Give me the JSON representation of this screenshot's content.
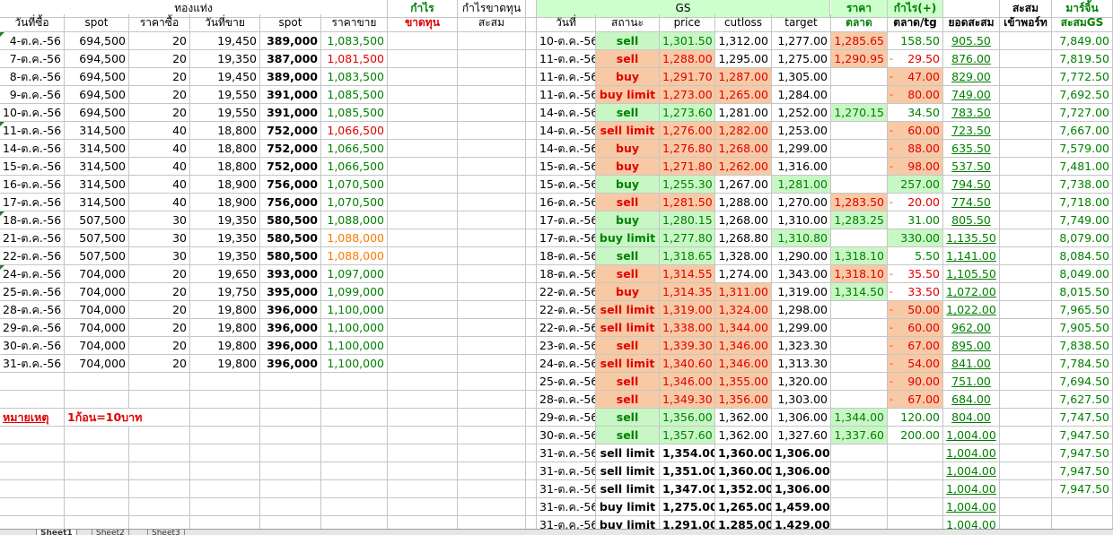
{
  "left": {
    "title": "ทองแท่ง",
    "profit_label": "กำไร",
    "loss_label": "ขาดทุน",
    "cum_title": "กำไรขาดทุน",
    "cum_label": "สะสม",
    "headers": [
      "วันที่ซื้อ",
      "spot",
      "ราคาซื้อ",
      "วันที่ขาย",
      "spot",
      "ราคาขาย"
    ],
    "rows": [
      [
        "4-ต.ค.-56",
        "694,500",
        "20",
        "19,450",
        "389,000",
        "1,083,500"
      ],
      [
        "7-ต.ค.-56",
        "694,500",
        "20",
        "19,350",
        "387,000",
        "1,081,500"
      ],
      [
        "8-ต.ค.-56",
        "694,500",
        "20",
        "19,450",
        "389,000",
        "1,083,500"
      ],
      [
        "9-ต.ค.-56",
        "694,500",
        "20",
        "19,550",
        "391,000",
        "1,085,500"
      ],
      [
        "10-ต.ค.-56",
        "694,500",
        "20",
        "19,550",
        "391,000",
        "1,085,500"
      ],
      [
        "11-ต.ค.-56",
        "314,500",
        "40",
        "18,800",
        "752,000",
        "1,066,500"
      ],
      [
        "14-ต.ค.-56",
        "314,500",
        "40",
        "18,800",
        "752,000",
        "1,066,500"
      ],
      [
        "15-ต.ค.-56",
        "314,500",
        "40",
        "18,800",
        "752,000",
        "1,066,500"
      ],
      [
        "16-ต.ค.-56",
        "314,500",
        "40",
        "18,900",
        "756,000",
        "1,070,500"
      ],
      [
        "17-ต.ค.-56",
        "314,500",
        "40",
        "18,900",
        "756,000",
        "1,070,500"
      ],
      [
        "18-ต.ค.-56",
        "507,500",
        "30",
        "19,350",
        "580,500",
        "1,088,000"
      ],
      [
        "21-ต.ค.-56",
        "507,500",
        "30",
        "19,350",
        "580,500",
        "1,088,000"
      ],
      [
        "22-ต.ค.-56",
        "507,500",
        "30",
        "19,350",
        "580,500",
        "1,088,000"
      ],
      [
        "24-ต.ค.-56",
        "704,000",
        "20",
        "19,650",
        "393,000",
        "1,097,000"
      ],
      [
        "25-ต.ค.-56",
        "704,000",
        "20",
        "19,750",
        "395,000",
        "1,099,000"
      ],
      [
        "28-ต.ค.-56",
        "704,000",
        "20",
        "19,800",
        "396,000",
        "1,100,000"
      ],
      [
        "29-ต.ค.-56",
        "704,000",
        "20",
        "19,800",
        "396,000",
        "1,100,000"
      ],
      [
        "30-ต.ค.-56",
        "704,000",
        "20",
        "19,800",
        "396,000",
        "1,100,000"
      ],
      [
        "31-ต.ค.-56",
        "704,000",
        "20",
        "19,800",
        "396,000",
        "1,100,000"
      ]
    ],
    "sale_colors": [
      "green",
      "red",
      "green",
      "green",
      "green",
      "red",
      "green",
      "green",
      "green",
      "green",
      "green",
      "orange",
      "orange",
      "green",
      "green",
      "green",
      "green",
      "green",
      "green"
    ],
    "date_marked_rows": [
      0,
      5,
      10,
      13
    ],
    "note_label": "หมายเหตุ",
    "note_text": "1ก้อน=10บาท"
  },
  "gs": {
    "title": "GS",
    "price_label": "ราคา",
    "profit_label": "กำไร(+)",
    "cum_label": "สะสม",
    "margin_label": "มาร์จิ้น",
    "headers": [
      "วันที่",
      "สถานะ",
      "price",
      "cutloss",
      "target",
      "ตลาด",
      "ตลาด/tg",
      "ยอดสะสม",
      "เข้าพอร์ท",
      "สะสมGS"
    ],
    "rows": [
      {
        "date": "10-ต.ค.-56",
        "status": "sell",
        "price": "1,301.50",
        "cutloss": "1,312.00",
        "target": "1,277.00",
        "market": "1,285.65",
        "pl": "158.50",
        "acc": "905.50",
        "margin": "7,849.00"
      },
      {
        "date": "11-ต.ค.-56",
        "status": "sell",
        "price": "1,288.00",
        "cutloss": "1,295.00",
        "target": "1,275.00",
        "market": "1,290.95",
        "pl": "29.50",
        "acc": "876.00",
        "margin": "7,819.50"
      },
      {
        "date": "11-ต.ค.-56",
        "status": "buy",
        "price": "1,291.70",
        "cutloss": "1,287.00",
        "target": "1,305.00",
        "market": "",
        "pl": "47.00",
        "acc": "829.00",
        "margin": "7,772.50"
      },
      {
        "date": "11-ต.ค.-56",
        "status": "buy limit",
        "price": "1,273.00",
        "cutloss": "1,265.00",
        "target": "1,284.00",
        "market": "",
        "pl": "80.00",
        "acc": "749.00",
        "margin": "7,692.50"
      },
      {
        "date": "14-ต.ค.-56",
        "status": "sell",
        "price": "1,273.60",
        "cutloss": "1,281.00",
        "target": "1,252.00",
        "market": "1,270.15",
        "pl": "34.50",
        "acc": "783.50",
        "margin": "7,727.00"
      },
      {
        "date": "14-ต.ค.-56",
        "status": "sell limit",
        "price": "1,276.00",
        "cutloss": "1,282.00",
        "target": "1,253.00",
        "market": "",
        "pl": "60.00",
        "acc": "723.50",
        "margin": "7,667.00"
      },
      {
        "date": "14-ต.ค.-56",
        "status": "buy",
        "price": "1,276.80",
        "cutloss": "1,268.00",
        "target": "1,299.00",
        "market": "",
        "pl": "88.00",
        "acc": "635.50",
        "margin": "7,579.00"
      },
      {
        "date": "15-ต.ค.-56",
        "status": "buy",
        "price": "1,271.80",
        "cutloss": "1,262.00",
        "target": "1,316.00",
        "market": "",
        "pl": "98.00",
        "acc": "537.50",
        "margin": "7,481.00"
      },
      {
        "date": "15-ต.ค.-56",
        "status": "buy",
        "price": "1,255.30",
        "cutloss": "1,267.00",
        "target": "1,281.00",
        "market": "",
        "pl": "257.00",
        "acc": "794.50",
        "margin": "7,738.00"
      },
      {
        "date": "16-ต.ค.-56",
        "status": "sell",
        "price": "1,281.50",
        "cutloss": "1,288.00",
        "target": "1,270.00",
        "market": "1,283.50",
        "pl": "20.00",
        "acc": "774.50",
        "margin": "7,718.00"
      },
      {
        "date": "17-ต.ค.-56",
        "status": "buy",
        "price": "1,280.15",
        "cutloss": "1,268.00",
        "target": "1,310.00",
        "market": "1,283.25",
        "pl": "31.00",
        "acc": "805.50",
        "margin": "7,749.00"
      },
      {
        "date": "17-ต.ค.-56",
        "status": "buy limit",
        "price": "1,277.80",
        "cutloss": "1,268.80",
        "target": "1,310.80",
        "market": "",
        "pl": "330.00",
        "acc": "1,135.50",
        "margin": "8,079.00"
      },
      {
        "date": "18-ต.ค.-56",
        "status": "sell",
        "price": "1,318.65",
        "cutloss": "1,328.00",
        "target": "1,290.00",
        "market": "1,318.10",
        "pl": "5.50",
        "acc": "1,141.00",
        "margin": "8,084.50"
      },
      {
        "date": "18-ต.ค.-56",
        "status": "sell",
        "price": "1,314.55",
        "cutloss": "1,274.00",
        "target": "1,343.00",
        "market": "1,318.10",
        "pl": "35.50",
        "acc": "1,105.50",
        "margin": "8,049.00"
      },
      {
        "date": "22-ต.ค.-56",
        "status": "buy",
        "price": "1,314.35",
        "cutloss": "1,311.00",
        "target": "1,319.00",
        "market": "1,314.50",
        "pl": "33.50",
        "acc": "1,072.00",
        "margin": "8,015.50"
      },
      {
        "date": "22-ต.ค.-56",
        "status": "sell limit",
        "price": "1,319.00",
        "cutloss": "1,324.00",
        "target": "1,298.00",
        "market": "",
        "pl": "50.00",
        "acc": "1,022.00",
        "margin": "7,965.50"
      },
      {
        "date": "22-ต.ค.-56",
        "status": "sell limit",
        "price": "1,338.00",
        "cutloss": "1,344.00",
        "target": "1,299.00",
        "market": "",
        "pl": "60.00",
        "acc": "962.00",
        "margin": "7,905.50"
      },
      {
        "date": "23-ต.ค.-56",
        "status": "sell",
        "price": "1,339.30",
        "cutloss": "1,346.00",
        "target": "1,323.30",
        "market": "",
        "pl": "67.00",
        "acc": "895.00",
        "margin": "7,838.50"
      },
      {
        "date": "24-ต.ค.-56",
        "status": "sell limit",
        "price": "1,340.60",
        "cutloss": "1,346.00",
        "target": "1,313.30",
        "market": "",
        "pl": "54.00",
        "acc": "841.00",
        "margin": "7,784.50"
      },
      {
        "date": "25-ต.ค.-56",
        "status": "sell",
        "price": "1,346.00",
        "cutloss": "1,355.00",
        "target": "1,320.00",
        "market": "",
        "pl": "90.00",
        "acc": "751.00",
        "margin": "7,694.50"
      },
      {
        "date": "28-ต.ค.-56",
        "status": "sell",
        "price": "1,349.30",
        "cutloss": "1,356.00",
        "target": "1,303.00",
        "market": "",
        "pl": "67.00",
        "acc": "684.00",
        "margin": "7,627.50"
      },
      {
        "date": "29-ต.ค.-56",
        "status": "sell",
        "price": "1,356.00",
        "cutloss": "1,362.00",
        "target": "1,306.00",
        "market": "1,344.00",
        "pl": "120.00",
        "acc": "804.00",
        "margin": "7,747.50"
      },
      {
        "date": "30-ต.ค.-56",
        "status": "sell",
        "price": "1,357.60",
        "cutloss": "1,362.00",
        "target": "1,327.60",
        "market": "1,337.60",
        "pl": "200.00",
        "acc": "1,004.00",
        "margin": "7,947.50"
      },
      {
        "date": "31-ต.ค.-56",
        "status": "sell limit",
        "price": "1,354.00",
        "cutloss": "1,360.00",
        "target": "1,306.00",
        "market": "",
        "pl": "",
        "acc": "1,004.00",
        "margin": "7,947.50"
      },
      {
        "date": "31-ต.ค.-56",
        "status": "sell limit",
        "price": "1,351.00",
        "cutloss": "1,360.00",
        "target": "1,306.00",
        "market": "",
        "pl": "",
        "acc": "1,004.00",
        "margin": "7,947.50"
      },
      {
        "date": "31-ต.ค.-56",
        "status": "sell limit",
        "price": "1,347.00",
        "cutloss": "1,352.00",
        "target": "1,306.00",
        "market": "",
        "pl": "",
        "acc": "1,004.00",
        "margin": "7,947.50"
      },
      {
        "date": "31-ต.ค.-56",
        "status": "buy limit",
        "price": "1,275.00",
        "cutloss": "1,265.00",
        "target": "1,459.00",
        "market": "",
        "pl": "",
        "acc": "1,004.00",
        "margin": ""
      },
      {
        "date": "31-ต.ค.-56",
        "status": "buy limit",
        "price": "1,291.00",
        "cutloss": "1,285.00",
        "target": "1,429.00",
        "market": "",
        "pl": "",
        "acc": "1,004.00",
        "margin": ""
      }
    ],
    "row_styles": [
      {
        "sc": "green",
        "bg": "g",
        "pl": "green",
        "mk": "o"
      },
      {
        "sc": "red",
        "bg": "o",
        "pl": "red",
        "mk": "o",
        "dash": true
      },
      {
        "sc": "red",
        "bg": "o",
        "pl": "red",
        "plbg": "o",
        "cutbg": "o",
        "dash": true
      },
      {
        "sc": "red",
        "bg": "o",
        "pl": "red",
        "plbg": "o",
        "cutbg": "o",
        "dash": true
      },
      {
        "sc": "green",
        "bg": "g",
        "pl": "green",
        "mk": "g"
      },
      {
        "sc": "red",
        "bg": "o",
        "pl": "red",
        "plbg": "o",
        "cutbg": "o",
        "dash": true
      },
      {
        "sc": "red",
        "bg": "o",
        "pl": "red",
        "plbg": "o",
        "cutbg": "o",
        "dash": true
      },
      {
        "sc": "red",
        "bg": "o",
        "pl": "red",
        "plbg": "o",
        "cutbg": "o",
        "dash": true
      },
      {
        "sc": "green",
        "bg": "g",
        "pl": "green",
        "plbg": "g",
        "tgbg": "g"
      },
      {
        "sc": "red",
        "bg": "o",
        "pl": "red",
        "mk": "o",
        "dash": true
      },
      {
        "sc": "green",
        "bg": "g",
        "pl": "green",
        "mk": "g"
      },
      {
        "sc": "green",
        "bg": "g",
        "pl": "green",
        "plbg": "g",
        "tgbg": "g"
      },
      {
        "sc": "green",
        "bg": "g",
        "pl": "green",
        "mk": "g"
      },
      {
        "sc": "red",
        "bg": "o",
        "pl": "red",
        "mk": "o",
        "dash": true
      },
      {
        "sc": "red",
        "bg": "o",
        "pl": "red",
        "mk": "g",
        "cutbg": "o",
        "dash": true
      },
      {
        "sc": "red",
        "bg": "o",
        "pl": "red",
        "plbg": "o",
        "cutbg": "o",
        "dash": true
      },
      {
        "sc": "red",
        "bg": "o",
        "pl": "red",
        "plbg": "o",
        "cutbg": "o",
        "dash": true
      },
      {
        "sc": "red",
        "bg": "o",
        "pl": "red",
        "plbg": "o",
        "cutbg": "o",
        "dash": true
      },
      {
        "sc": "red",
        "bg": "o",
        "pl": "red",
        "plbg": "o",
        "cutbg": "o",
        "dash": true
      },
      {
        "sc": "red",
        "bg": "o",
        "pl": "red",
        "plbg": "o",
        "cutbg": "o",
        "dash": true
      },
      {
        "sc": "red",
        "bg": "o",
        "pl": "red",
        "plbg": "o",
        "cutbg": "o",
        "dash": true
      },
      {
        "sc": "green",
        "bg": "g",
        "pl": "green",
        "mk": "g"
      },
      {
        "sc": "green",
        "bg": "g",
        "pl": "green",
        "mk": "g"
      },
      {
        "sc": "black",
        "bg": "",
        "pl": "black"
      },
      {
        "sc": "black",
        "bg": "",
        "pl": "black"
      },
      {
        "sc": "black",
        "bg": "",
        "pl": "black"
      },
      {
        "sc": "black",
        "bg": "",
        "pl": "black"
      },
      {
        "sc": "black",
        "bg": "",
        "pl": "black"
      }
    ]
  },
  "tabs": [
    "Sheet1",
    "Sheet2",
    "Sheet3"
  ],
  "colors": {
    "profit_green": "#008000",
    "loss_red": "#e00000",
    "warn_orange": "#ff7a00",
    "green_fill": "#c8f7c5",
    "orange_fill": "#f8c9a5",
    "header_fill": "#ccffcc"
  }
}
